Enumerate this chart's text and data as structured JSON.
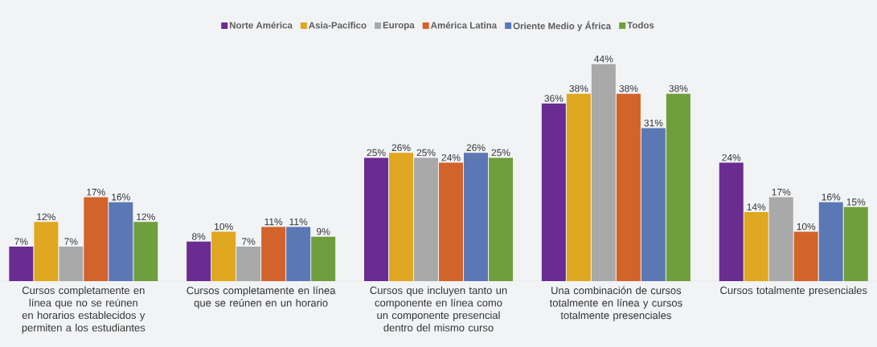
{
  "chart_data": {
    "type": "bar",
    "legend": "top",
    "tick_labels": "x",
    "categories": [
      "Cursos completamente en línea que no se reúnen en horarios establecidos y permiten a los estudiantes",
      "Cursos completamente en línea que se reúnen en un horario",
      "Cursos que incluyen tanto un componente en línea como un componente presencial dentro del mismo curso",
      "Una combinación de cursos totalmente en línea y cursos totalmente presenciales",
      "Cursos totalmente presenciales"
    ],
    "series": [
      {
        "name": "Norte América",
        "color": "#6a2c91",
        "values": [
          7,
          8,
          25,
          36,
          24
        ],
        "value_labels": [
          "7%",
          "8%",
          "25%",
          "36%",
          "24%"
        ]
      },
      {
        "name": "Asia-Pacífico",
        "color": "#e0a820",
        "values": [
          12,
          10,
          26,
          38,
          14
        ],
        "value_labels": [
          "12%",
          "10%",
          "26%",
          "38%",
          "14%"
        ]
      },
      {
        "name": "Europa",
        "color": "#a9a9a9",
        "values": [
          7,
          7,
          25,
          44,
          17
        ],
        "value_labels": [
          "7%",
          "7%",
          "25%",
          "44%",
          "17%"
        ]
      },
      {
        "name": "América Latina",
        "color": "#d2632a",
        "values": [
          17,
          11,
          24,
          38,
          10
        ],
        "value_labels": [
          "17%",
          "11%",
          "24%",
          "38%",
          "10%"
        ]
      },
      {
        "name": "Oriente Medio y África",
        "color": "#5b77b4",
        "values": [
          16,
          11,
          26,
          31,
          16
        ],
        "value_labels": [
          "16%",
          "11%",
          "26%",
          "31%",
          "16%"
        ]
      },
      {
        "name": "Todos",
        "color": "#6f9e3e",
        "values": [
          12,
          9,
          25,
          38,
          15
        ],
        "value_labels": [
          "12%",
          "9%",
          "25%",
          "38%",
          "15%"
        ]
      }
    ]
  }
}
